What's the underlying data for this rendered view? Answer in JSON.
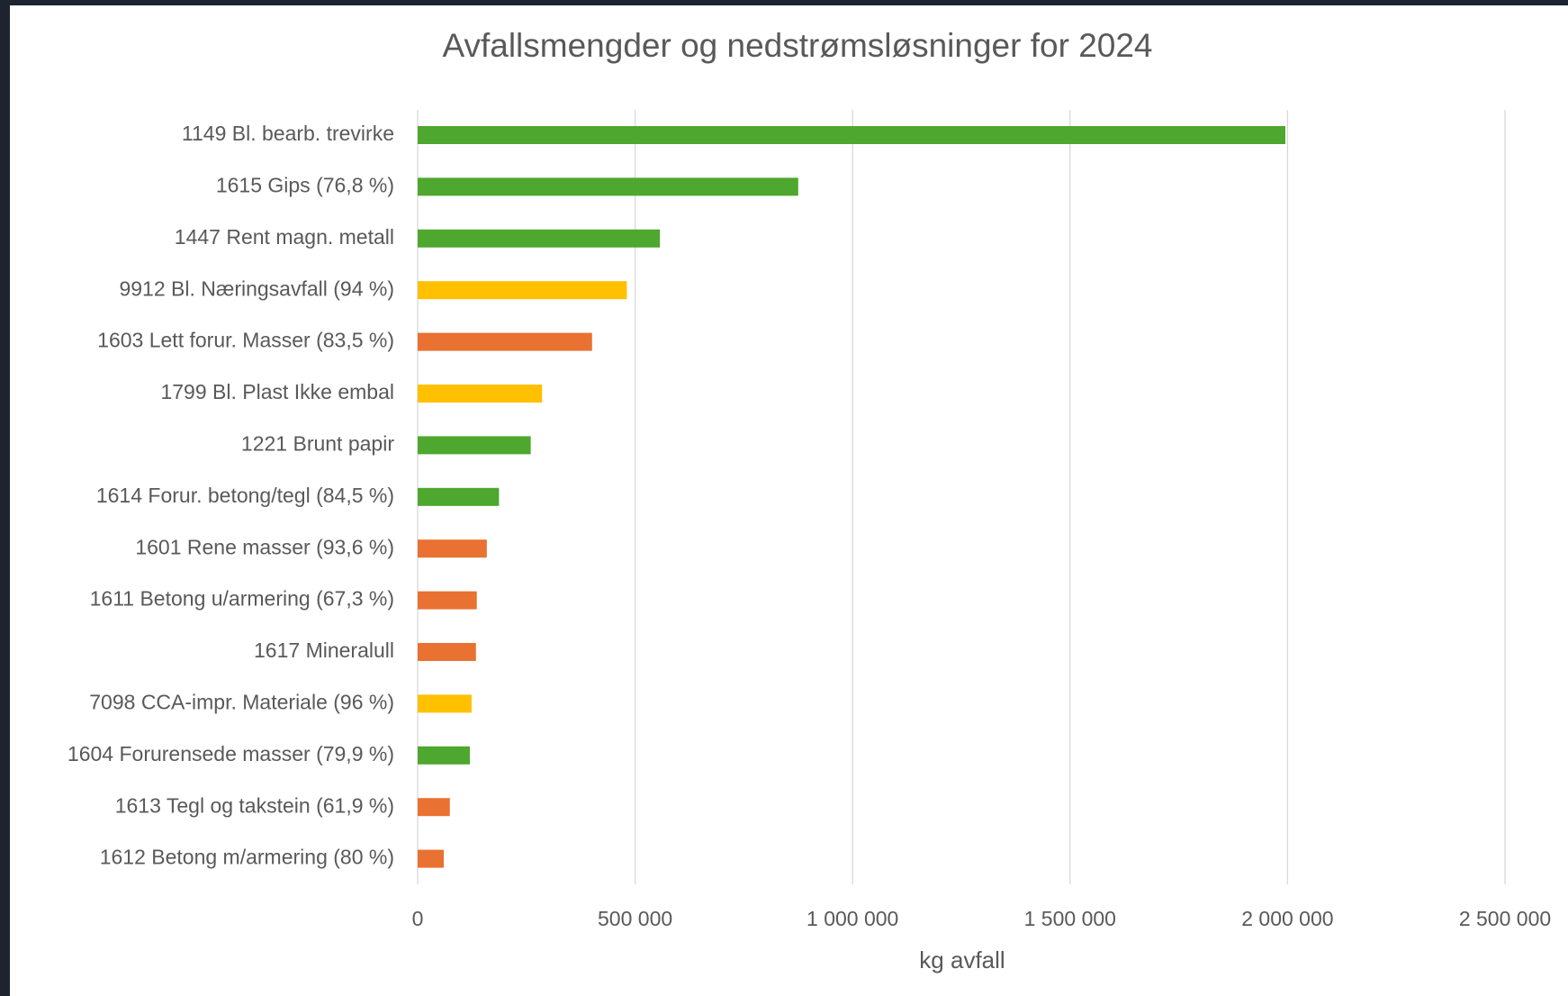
{
  "chart_data": {
    "type": "barh",
    "title": "Avfallsmengder og nedstrømsløsninger for 2024",
    "x_label": "kg avfall",
    "categories": [
      "1149 Bl. bearb. trevirke",
      "1615 Gips (76,8 %)",
      "1447 Rent magn. metall",
      "9912 Bl. Næringsavfall (94 %)",
      "1603 Lett forur. Masser (83,5 %)",
      "1799 Bl. Plast Ikke embal",
      "1221 Brunt papir",
      "1614 Forur. betong/tegl (84,5 %)",
      "1601 Rene masser (93,6 %)",
      "1611 Betong u/armering (67,3 %)",
      "1617 Mineralull",
      "7098 CCA-impr. Materiale (96 %)",
      "1604 Forurensede masser (79,9 %)",
      "1613 Tegl og takstein (61,9 %)",
      "1612 Betong m/armering (80 %)"
    ],
    "values": [
      1995000,
      875000,
      557000,
      481000,
      401000,
      286000,
      260000,
      187000,
      159000,
      136000,
      134000,
      124000,
      120000,
      74000,
      60000
    ],
    "colors": [
      "#4ea72e",
      "#4ea72e",
      "#4ea72e",
      "#ffc000",
      "#e97132",
      "#ffc000",
      "#4ea72e",
      "#4ea72e",
      "#e97132",
      "#e97132",
      "#e97132",
      "#ffc000",
      "#4ea72e",
      "#e97132",
      "#e97132"
    ],
    "xlim": [
      0,
      2500000
    ],
    "xticks": [
      0,
      {
        "value": 500000,
        "label": "500 000"
      },
      {
        "value": 1000000,
        "label": "1 000 000"
      },
      {
        "value": 1500000,
        "label": "1 500 000"
      },
      {
        "value": 2000000,
        "label": "2 000 000"
      },
      {
        "value": 2500000,
        "label": "2 500 000"
      }
    ],
    "grid": true
  }
}
